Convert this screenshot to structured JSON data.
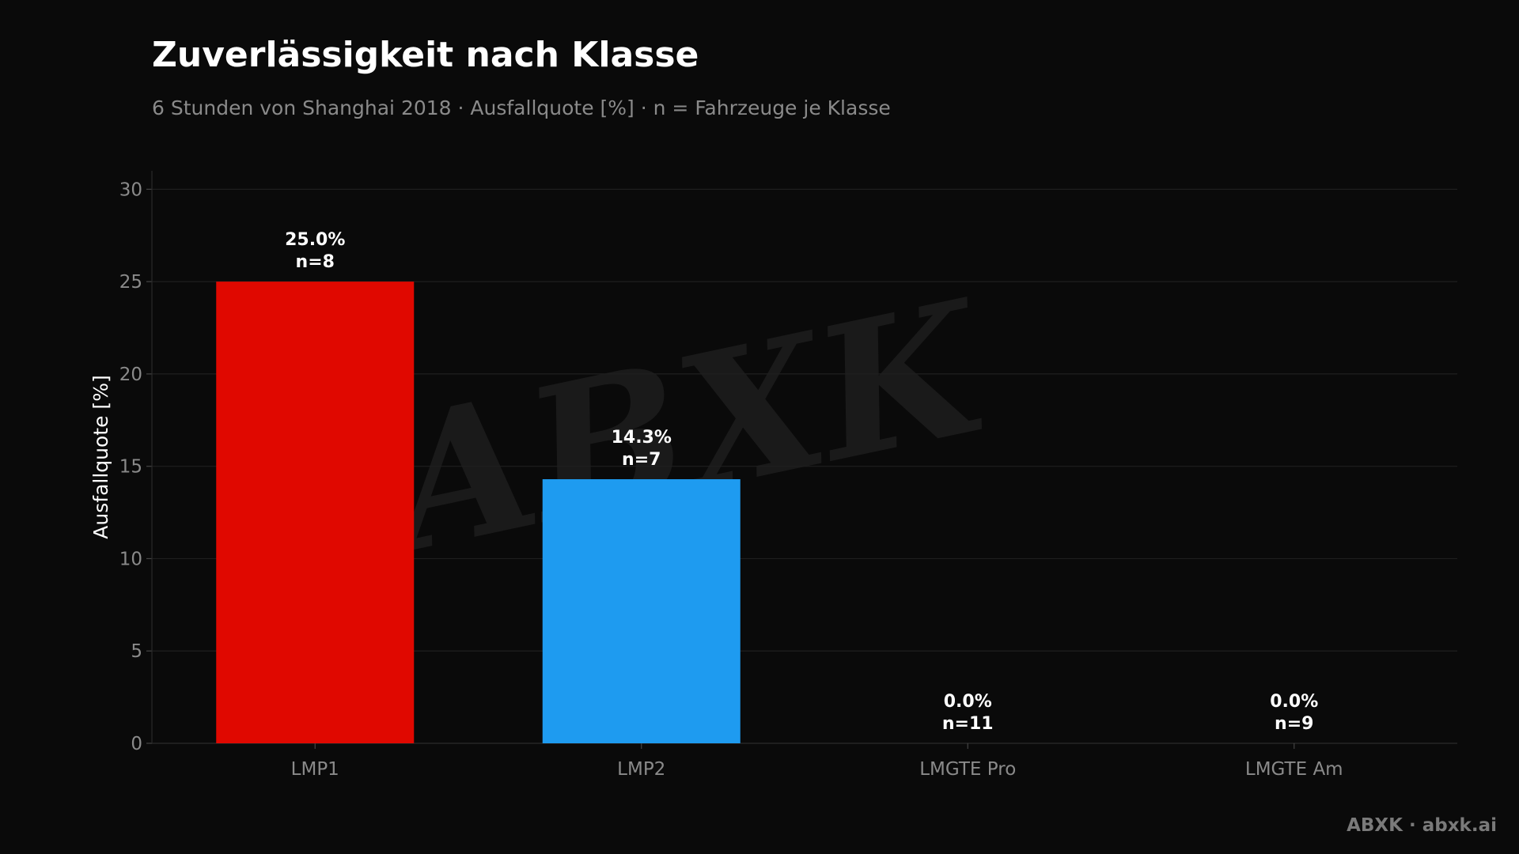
{
  "title": "Zuverlässigkeit nach Klasse",
  "subtitle": "6 Stunden von Shanghai 2018 · Ausfallquote [%] · n = Fahrzeuge je Klasse",
  "footer": "ABXK · abxk.ai",
  "watermark": "ABXK",
  "chart_data": {
    "type": "bar",
    "categories": [
      "LMP1",
      "LMP2",
      "LMGTE Pro",
      "LMGTE Am"
    ],
    "values": [
      25.0,
      14.3,
      0.0,
      0.0
    ],
    "counts": [
      8,
      7,
      11,
      9
    ],
    "value_labels": [
      "25.0%",
      "14.3%",
      "0.0%",
      "0.0%"
    ],
    "count_labels": [
      "n=8",
      "n=7",
      "n=11",
      "n=9"
    ],
    "colors": [
      "#e00800",
      "#1e9bf0",
      "#1e9bf0",
      "#1e9bf0"
    ],
    "ylabel": "Ausfallquote [%]",
    "ylim": [
      0,
      31
    ],
    "yticks": [
      0,
      5,
      10,
      15,
      20,
      25,
      30
    ],
    "grid": true
  }
}
